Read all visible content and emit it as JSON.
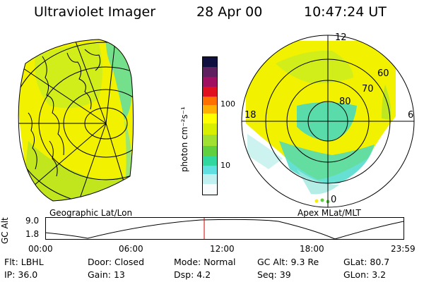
{
  "header": {
    "title": "Ultraviolet Imager",
    "date": "28 Apr 00",
    "time": "10:47:24 UT"
  },
  "left_panel": {
    "caption": "Geographic Lat/Lon"
  },
  "right_panel": {
    "caption": "Apex MLat/MLT",
    "lat_labels": [
      "80",
      "70",
      "60"
    ],
    "mlt_labels": [
      "12",
      "18",
      "6",
      "0"
    ]
  },
  "colorbar": {
    "unit": "photon cm⁻²s⁻¹",
    "ticks": [
      "100",
      "10"
    ],
    "scale": "log"
  },
  "altitude_plot": {
    "ylabel": "GC Alt",
    "yticks": [
      "9.0",
      "1.8"
    ],
    "xticks": [
      "00:00",
      "06:00",
      "12:00",
      "18:00",
      "23:59"
    ],
    "marker_time": "10:47:24"
  },
  "info": {
    "flt": {
      "label": "Flt:",
      "value": "LBHL"
    },
    "door": {
      "label": "Door:",
      "value": "Closed"
    },
    "mode": {
      "label": "Mode:",
      "value": "Normal"
    },
    "gcalt": {
      "label": "GC Alt:",
      "value": "9.3 Re"
    },
    "glat": {
      "label": "GLat:",
      "value": "80.7"
    },
    "ip": {
      "label": "IP:",
      "value": "36.0"
    },
    "gain": {
      "label": "Gain:",
      "value": "13"
    },
    "dsp": {
      "label": "Dsp:",
      "value": "4.2"
    },
    "seq": {
      "label": "Seq:",
      "value": "39"
    },
    "glon": {
      "label": "GLon:",
      "value": "3.2"
    }
  },
  "colors": {
    "yellow": "#f2f200",
    "green": "#a8e030",
    "cyan": "#40d8c8",
    "marker": "#d00000"
  }
}
